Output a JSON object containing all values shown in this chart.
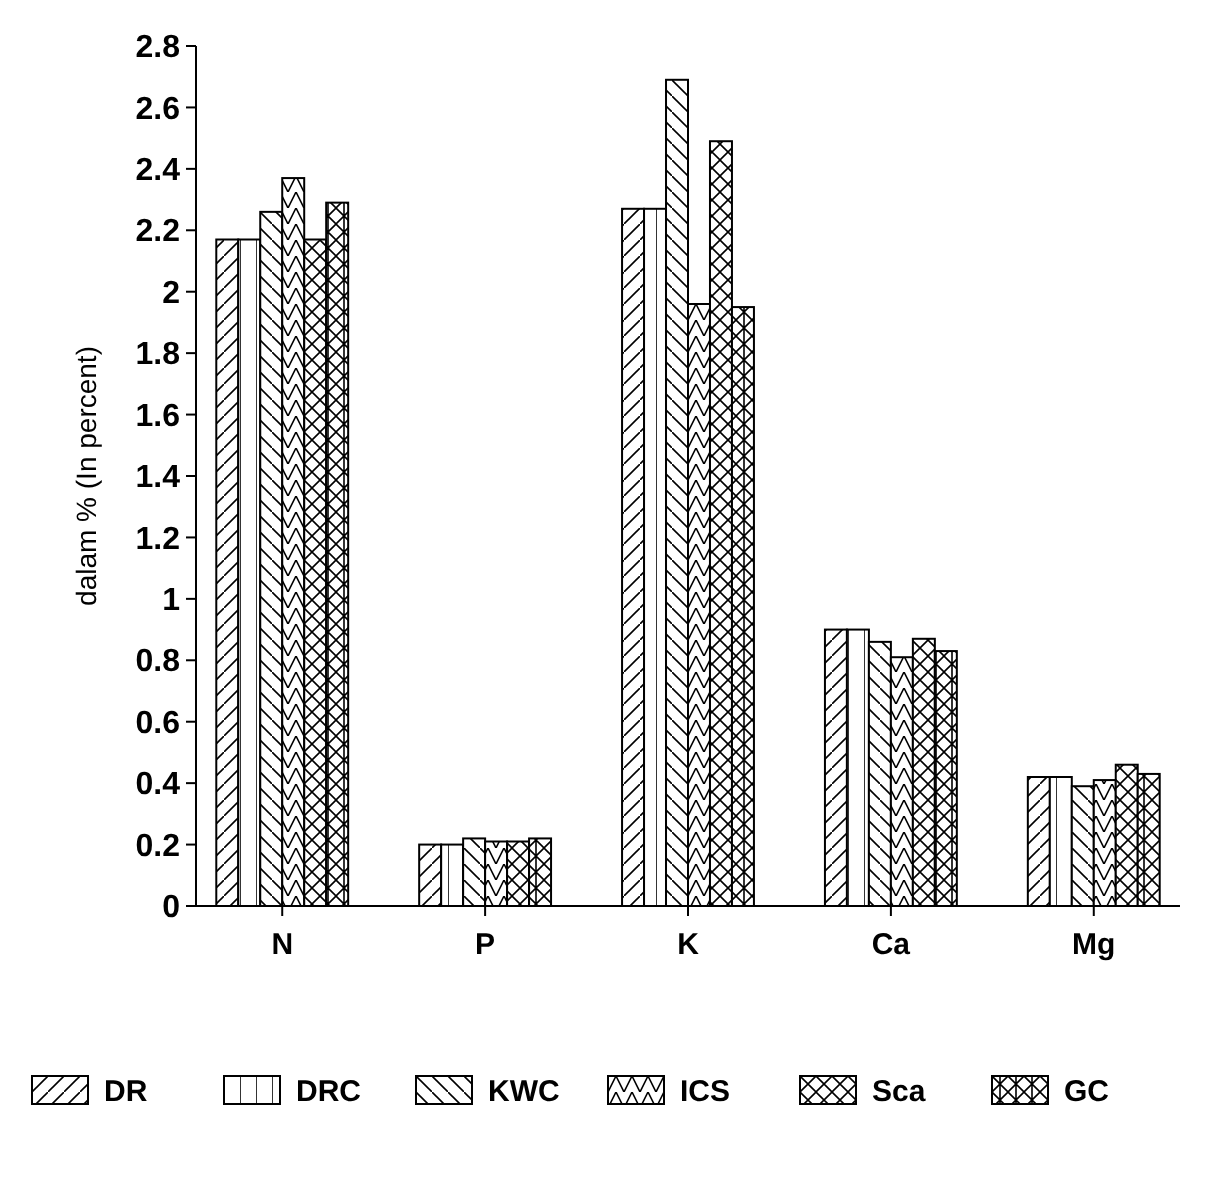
{
  "chart_data": {
    "type": "bar",
    "ylabel": "dalam % (In percent)",
    "categories": [
      "N",
      "P",
      "K",
      "Ca",
      "Mg"
    ],
    "series": [
      {
        "name": "DR",
        "color": "#000000",
        "values": [
          2.17,
          0.2,
          2.27,
          0.9,
          0.42
        ]
      },
      {
        "name": "DRC",
        "color": "#000000",
        "values": [
          2.17,
          0.2,
          2.27,
          0.9,
          0.42
        ]
      },
      {
        "name": "KWC",
        "color": "#000000",
        "values": [
          2.26,
          0.22,
          2.69,
          0.86,
          0.39
        ]
      },
      {
        "name": "ICS",
        "color": "#000000",
        "values": [
          2.37,
          0.21,
          1.96,
          0.81,
          0.41
        ]
      },
      {
        "name": "Sca",
        "color": "#000000",
        "values": [
          2.17,
          0.21,
          2.49,
          0.87,
          0.46
        ]
      },
      {
        "name": "GC",
        "color": "#000000",
        "values": [
          2.29,
          0.22,
          1.95,
          0.83,
          0.43
        ]
      }
    ],
    "ylim": [
      0,
      2.8
    ],
    "yticks": [
      0,
      0.2,
      0.4,
      0.6,
      0.8,
      1,
      1.2,
      1.4,
      1.6,
      1.8,
      2,
      2.2,
      2.4,
      2.6,
      2.8
    ],
    "grid": false,
    "legend": "bottom"
  }
}
